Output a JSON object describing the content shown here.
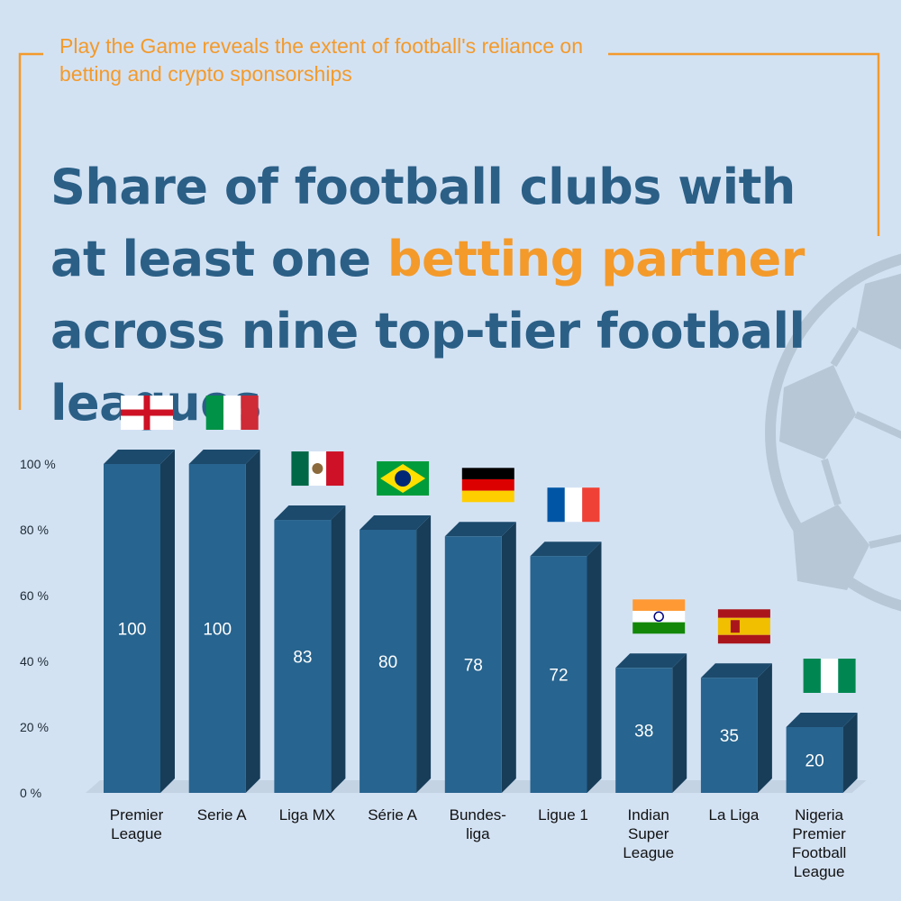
{
  "header": {
    "subtitle": "Play the Game reveals the extent of football's reliance on betting and crypto sponsorships",
    "title_part1": "Share of football clubs with at least one ",
    "title_highlight": "betting partner",
    "title_part2": " across nine top-tier football leagues"
  },
  "colors": {
    "background": "#d3e2f3",
    "accent": "#f39a2b",
    "title": "#2b5f86",
    "bar_front": "#27648f",
    "bar_top": "#1c4a6c",
    "bar_side": "#173d59",
    "ball": "#b7c7d6"
  },
  "chart_data": {
    "type": "bar",
    "title": "Share of football clubs with at least one betting partner across nine top-tier football leagues",
    "ylim": [
      0,
      100
    ],
    "yticks": [
      "0 %",
      "20 %",
      "40 %",
      "60 %",
      "80 %",
      "100 %"
    ],
    "ytick_values": [
      0,
      20,
      40,
      60,
      80,
      100
    ],
    "categories": [
      {
        "label": [
          "Premier",
          "League"
        ],
        "flag": "england-flag"
      },
      {
        "label": [
          "Serie A"
        ],
        "flag": "italy-flag"
      },
      {
        "label": [
          "Liga MX"
        ],
        "flag": "mexico-flag"
      },
      {
        "label": [
          "Série A"
        ],
        "flag": "brazil-flag"
      },
      {
        "label": [
          "Bundes-",
          "liga"
        ],
        "flag": "germany-flag"
      },
      {
        "label": [
          "Ligue 1"
        ],
        "flag": "france-flag"
      },
      {
        "label": [
          "Indian",
          "Super",
          "League"
        ],
        "flag": "india-flag"
      },
      {
        "label": [
          "La Liga"
        ],
        "flag": "spain-flag"
      },
      {
        "label": [
          "Nigeria",
          "Premier",
          "Football",
          "League"
        ],
        "flag": "nigeria-flag"
      }
    ],
    "values": [
      100,
      100,
      83,
      80,
      78,
      72,
      38,
      35,
      20
    ]
  }
}
